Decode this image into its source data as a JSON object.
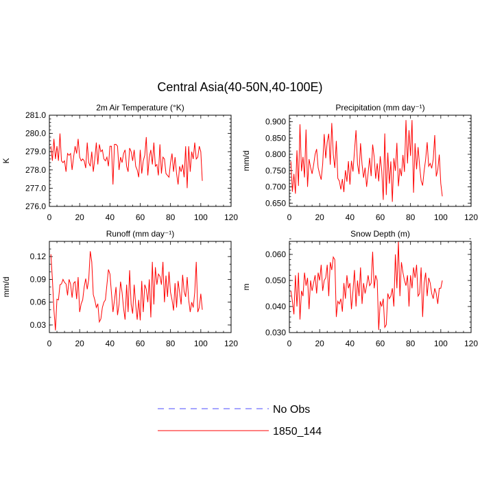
{
  "figure_title": "Central Asia(40-50N,40-100E)",
  "legend": {
    "entries": [
      {
        "label": "No Obs",
        "color": "#4a4aff",
        "dash": "dashed"
      },
      {
        "label": "1850_144",
        "color": "#ff0000",
        "dash": "solid"
      }
    ]
  },
  "chart_data": [
    {
      "type": "line",
      "title": "2m Air Temperature (°K)",
      "ylabel": "K",
      "xlim": [
        0,
        120
      ],
      "xticks": [
        0,
        20,
        40,
        60,
        80,
        100,
        120
      ],
      "xtick_labels": [
        "0",
        "20",
        "40",
        "60",
        "80",
        "100",
        "120"
      ],
      "ylim": [
        276.0,
        281.0
      ],
      "yticks": [
        276.0,
        277.0,
        278.0,
        279.0,
        280.0,
        281.0
      ],
      "ytick_labels": [
        "276.0",
        "277.0",
        "278.0",
        "279.0",
        "280.0",
        "281.0"
      ],
      "minor_y": 0.2,
      "series": [
        {
          "name": "1850_144",
          "color": "#ff0000",
          "x_start": 1,
          "x_step": 1,
          "values": [
            279.3,
            278.5,
            279.7,
            278.6,
            279.3,
            278.5,
            280.0,
            278.5,
            278.4,
            278.5,
            277.9,
            278.9,
            278.8,
            278.9,
            278.0,
            278.7,
            279.3,
            278.9,
            279.7,
            278.7,
            278.5,
            278.6,
            278.5,
            278.1,
            279.5,
            278.4,
            278.2,
            279.0,
            277.9,
            278.6,
            279.5,
            278.3,
            279.4,
            279.0,
            279.1,
            278.6,
            278.5,
            278.7,
            278.2,
            279.3,
            279.3,
            277.2,
            279.4,
            279.4,
            279.3,
            278.0,
            278.7,
            278.4,
            278.9,
            279.1,
            278.2,
            277.9,
            279.2,
            279.0,
            278.5,
            279.1,
            278.2,
            278.0,
            277.6,
            279.1,
            277.8,
            278.5,
            278.8,
            279.8,
            277.7,
            278.7,
            279.1,
            278.3,
            279.5,
            278.2,
            278.3,
            277.7,
            279.4,
            277.8,
            278.7,
            278.6,
            277.8,
            277.7,
            277.6,
            278.4,
            278.9,
            277.9,
            278.7,
            277.8,
            277.2,
            278.2,
            277.9,
            278.3,
            277.6,
            279.3,
            277.0,
            279.3,
            277.9,
            279.0,
            278.6,
            279.5,
            278.6,
            278.7,
            279.3,
            279.0,
            277.4
          ]
        }
      ]
    },
    {
      "type": "line",
      "title": "Precipitation (mm day⁻¹)",
      "ylabel": "mm/d",
      "xlim": [
        0,
        120
      ],
      "xticks": [
        0,
        20,
        40,
        60,
        80,
        100,
        120
      ],
      "xtick_labels": [
        "0",
        "20",
        "40",
        "60",
        "80",
        "100",
        "120"
      ],
      "ylim": [
        0.64,
        0.92
      ],
      "yticks": [
        0.65,
        0.7,
        0.75,
        0.8,
        0.85,
        0.9
      ],
      "ytick_labels": [
        "0.650",
        "0.700",
        "0.750",
        "0.800",
        "0.850",
        "0.900"
      ],
      "minor_y": 0.01,
      "series": [
        {
          "name": "1850_144",
          "color": "#ff0000",
          "x_start": 1,
          "x_step": 1,
          "values": [
            0.778,
            0.685,
            0.74,
            0.679,
            0.812,
            0.703,
            0.892,
            0.748,
            0.792,
            0.729,
            0.876,
            0.7,
            0.785,
            0.76,
            0.74,
            0.767,
            0.8,
            0.816,
            0.759,
            0.739,
            0.722,
            0.77,
            0.862,
            0.788,
            0.838,
            0.863,
            0.768,
            0.896,
            0.8,
            0.758,
            0.841,
            0.726,
            0.718,
            0.692,
            0.724,
            0.684,
            0.751,
            0.716,
            0.779,
            0.707,
            0.78,
            0.747,
            0.81,
            0.874,
            0.77,
            0.739,
            0.834,
            0.769,
            0.728,
            0.759,
            0.7,
            0.742,
            0.789,
            0.733,
            0.83,
            0.792,
            0.725,
            0.772,
            0.717,
            0.794,
            0.749,
            0.66,
            0.864,
            0.675,
            0.805,
            0.71,
            0.778,
            0.654,
            0.788,
            0.749,
            0.835,
            0.702,
            0.757,
            0.733,
            0.798,
            0.746,
            0.905,
            0.772,
            0.874,
            0.795,
            0.905,
            0.682,
            0.834,
            0.754,
            0.822,
            0.764,
            0.719,
            0.704,
            0.749,
            0.785,
            0.837,
            0.763,
            0.772,
            0.757,
            0.784,
            0.859,
            0.732,
            0.752,
            0.799,
            0.71,
            0.671
          ]
        }
      ]
    },
    {
      "type": "line",
      "title": "Runoff (mm day⁻¹)",
      "ylabel": "mm/d",
      "xlim": [
        0,
        120
      ],
      "xticks": [
        0,
        20,
        40,
        60,
        80,
        100,
        120
      ],
      "xtick_labels": [
        "0",
        "20",
        "40",
        "60",
        "80",
        "100",
        "120"
      ],
      "ylim": [
        0.02,
        0.14
      ],
      "yticks": [
        0.03,
        0.06,
        0.09,
        0.12
      ],
      "ytick_labels": [
        "0.03",
        "0.06",
        "0.09",
        "0.12"
      ],
      "minor_y": 0.01,
      "series": [
        {
          "name": "1850_144",
          "color": "#ff0000",
          "x_start": 1,
          "x_step": 1,
          "values": [
            0.123,
            0.09,
            0.05,
            0.023,
            0.064,
            0.063,
            0.083,
            0.084,
            0.09,
            0.086,
            0.084,
            0.069,
            0.09,
            0.084,
            0.066,
            0.085,
            0.087,
            0.064,
            0.093,
            0.047,
            0.058,
            0.063,
            0.08,
            0.091,
            0.077,
            0.09,
            0.127,
            0.113,
            0.07,
            0.063,
            0.053,
            0.058,
            0.034,
            0.038,
            0.053,
            0.06,
            0.063,
            0.083,
            0.103,
            0.097,
            0.072,
            0.047,
            0.063,
            0.08,
            0.043,
            0.057,
            0.087,
            0.073,
            0.052,
            0.037,
            0.083,
            0.047,
            0.102,
            0.057,
            0.045,
            0.083,
            0.057,
            0.037,
            0.063,
            0.036,
            0.088,
            0.047,
            0.083,
            0.077,
            0.06,
            0.09,
            0.04,
            0.113,
            0.057,
            0.106,
            0.083,
            0.097,
            0.094,
            0.083,
            0.113,
            0.06,
            0.095,
            0.067,
            0.1,
            0.073,
            0.063,
            0.049,
            0.085,
            0.053,
            0.088,
            0.073,
            0.057,
            0.096,
            0.074,
            0.067,
            0.093,
            0.063,
            0.047,
            0.06,
            0.053,
            0.073,
            0.113,
            0.047,
            0.053,
            0.071,
            0.05
          ]
        }
      ]
    },
    {
      "type": "line",
      "title": "Snow Depth (m)",
      "ylabel": "m",
      "xlim": [
        0,
        120
      ],
      "xticks": [
        0,
        20,
        40,
        60,
        80,
        100,
        120
      ],
      "xtick_labels": [
        "0",
        "20",
        "40",
        "60",
        "80",
        "100",
        "120"
      ],
      "ylim": [
        0.03,
        0.065
      ],
      "yticks": [
        0.03,
        0.04,
        0.05,
        0.06
      ],
      "ytick_labels": [
        "0.030",
        "0.040",
        "0.050",
        "0.060"
      ],
      "minor_y": 0.002,
      "series": [
        {
          "name": "1850_144",
          "color": "#ff0000",
          "x_start": 1,
          "x_step": 1,
          "values": [
            0.046,
            0.042,
            0.037,
            0.052,
            0.04,
            0.053,
            0.035,
            0.046,
            0.044,
            0.053,
            0.048,
            0.051,
            0.039,
            0.05,
            0.046,
            0.049,
            0.052,
            0.045,
            0.053,
            0.05,
            0.056,
            0.046,
            0.05,
            0.051,
            0.056,
            0.044,
            0.057,
            0.054,
            0.059,
            0.058,
            0.036,
            0.042,
            0.041,
            0.043,
            0.038,
            0.049,
            0.043,
            0.052,
            0.047,
            0.049,
            0.039,
            0.046,
            0.054,
            0.04,
            0.05,
            0.044,
            0.055,
            0.041,
            0.049,
            0.045,
            0.048,
            0.052,
            0.048,
            0.049,
            0.061,
            0.047,
            0.052,
            0.05,
            0.031,
            0.042,
            0.04,
            0.043,
            0.032,
            0.033,
            0.045,
            0.043,
            0.044,
            0.047,
            0.04,
            0.06,
            0.047,
            0.065,
            0.044,
            0.057,
            0.053,
            0.05,
            0.048,
            0.052,
            0.04,
            0.052,
            0.047,
            0.055,
            0.051,
            0.056,
            0.044,
            0.045,
            0.055,
            0.036,
            0.049,
            0.053,
            0.044,
            0.051,
            0.049,
            0.045,
            0.043,
            0.047,
            0.045,
            0.041,
            0.047,
            0.047,
            0.05
          ]
        }
      ]
    }
  ]
}
